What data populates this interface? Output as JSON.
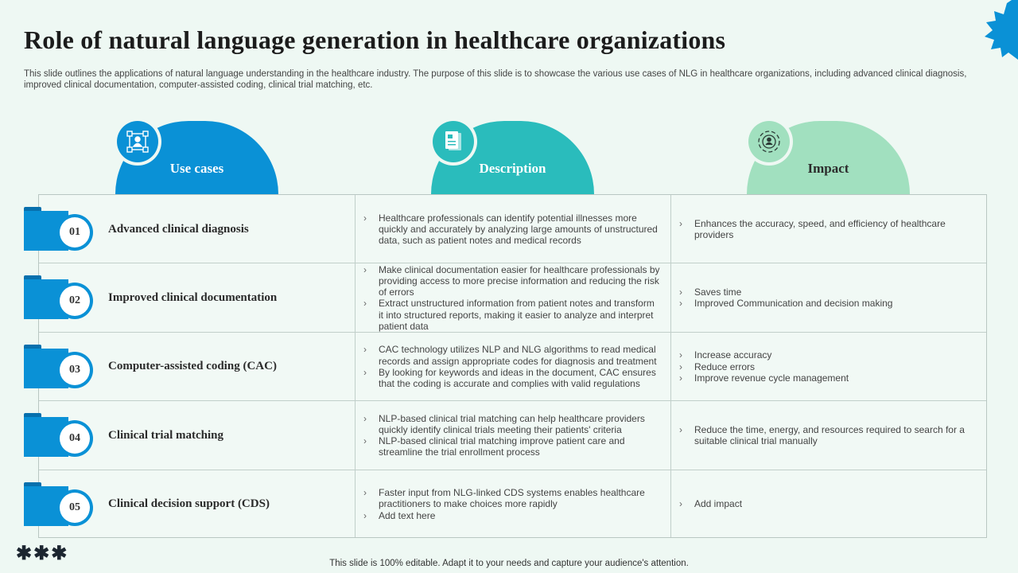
{
  "title": "Role of natural language generation in healthcare organizations",
  "subtitle": "This slide outlines the applications of natural language understanding in the healthcare industry. The purpose of this slide is to showcase the various use cases of NLG in healthcare organizations, including advanced clinical diagnosis, improved clinical documentation, computer-assisted coding, clinical trial matching, etc.",
  "headers": {
    "use_cases": "Use cases",
    "description": "Description",
    "impact": "Impact"
  },
  "colors": {
    "blue": "#0a91d6",
    "teal": "#2abcbc",
    "green": "#a1e0bf",
    "background": "#eef8f3"
  },
  "rows": [
    {
      "number": "01",
      "use_case": "Advanced clinical diagnosis",
      "description": [
        "Healthcare professionals can identify potential illnesses more quickly and accurately by analyzing large amounts of unstructured data, such as patient notes and medical records"
      ],
      "impact": [
        "Enhances the accuracy, speed, and efficiency of healthcare providers"
      ]
    },
    {
      "number": "02",
      "use_case": "Improved clinical documentation",
      "description": [
        "Make clinical documentation easier for healthcare professionals by providing access to more precise information and reducing the risk of errors",
        "Extract unstructured information from patient notes and transform it into structured reports, making it easier to analyze and interpret patient data"
      ],
      "impact": [
        "Saves time",
        "Improved Communication and decision making"
      ]
    },
    {
      "number": "03",
      "use_case": "Computer-assisted coding (CAC)",
      "description": [
        "CAC technology utilizes NLP and NLG algorithms to read medical records and assign appropriate codes for diagnosis and treatment",
        "By looking for keywords and ideas in the document, CAC ensures that the coding is accurate and complies with valid regulations"
      ],
      "impact": [
        "Increase accuracy",
        "Reduce errors",
        "Improve revenue cycle management"
      ]
    },
    {
      "number": "04",
      "use_case": "Clinical trial matching",
      "description": [
        "NLP-based clinical trial matching can help healthcare providers quickly identify clinical trials meeting their patients' criteria",
        "NLP-based clinical trial matching improve patient care and streamline the trial enrollment process"
      ],
      "impact": [
        "Reduce the time, energy, and resources required to search for a suitable clinical trial manually"
      ]
    },
    {
      "number": "05",
      "use_case": "Clinical decision support (CDS)",
      "description": [
        "Faster input from NLG-linked CDS systems enables healthcare practitioners to make choices more rapidly",
        "Add text here"
      ],
      "impact": [
        "Add impact"
      ]
    }
  ],
  "icons": {
    "use_cases": "network-user-icon",
    "description": "document-icon",
    "impact": "target-user-icon",
    "decoration": "starburst-icon"
  },
  "asterisks": "✱✱✱",
  "footer": "This slide is 100% editable. Adapt it to your needs and capture your audience's attention."
}
